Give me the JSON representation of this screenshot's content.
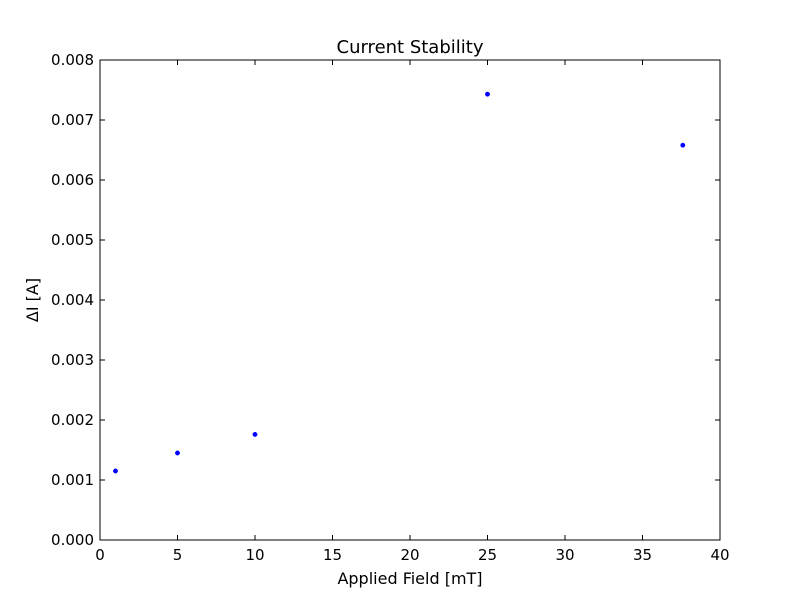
{
  "chart_data": {
    "type": "scatter",
    "title": "Current Stability",
    "xlabel": "Applied Field [mT]",
    "ylabel": "ΔI [A]",
    "xlim": [
      0,
      40
    ],
    "ylim": [
      0,
      0.008
    ],
    "x_ticks": [
      0,
      5,
      10,
      15,
      20,
      25,
      30,
      35,
      40
    ],
    "y_ticks": [
      0.0,
      0.001,
      0.002,
      0.003,
      0.004,
      0.005,
      0.006,
      0.007,
      0.008
    ],
    "x_tick_labels": [
      "0",
      "5",
      "10",
      "15",
      "20",
      "25",
      "30",
      "35",
      "40"
    ],
    "y_tick_labels": [
      "0.000",
      "0.001",
      "0.002",
      "0.003",
      "0.004",
      "0.005",
      "0.006",
      "0.007",
      "0.008"
    ],
    "grid": false,
    "series": [
      {
        "color": "#0000ff",
        "x": [
          1,
          5,
          10,
          25,
          37.6
        ],
        "y": [
          0.00115,
          0.00145,
          0.00176,
          0.00743,
          0.00658
        ]
      }
    ]
  }
}
